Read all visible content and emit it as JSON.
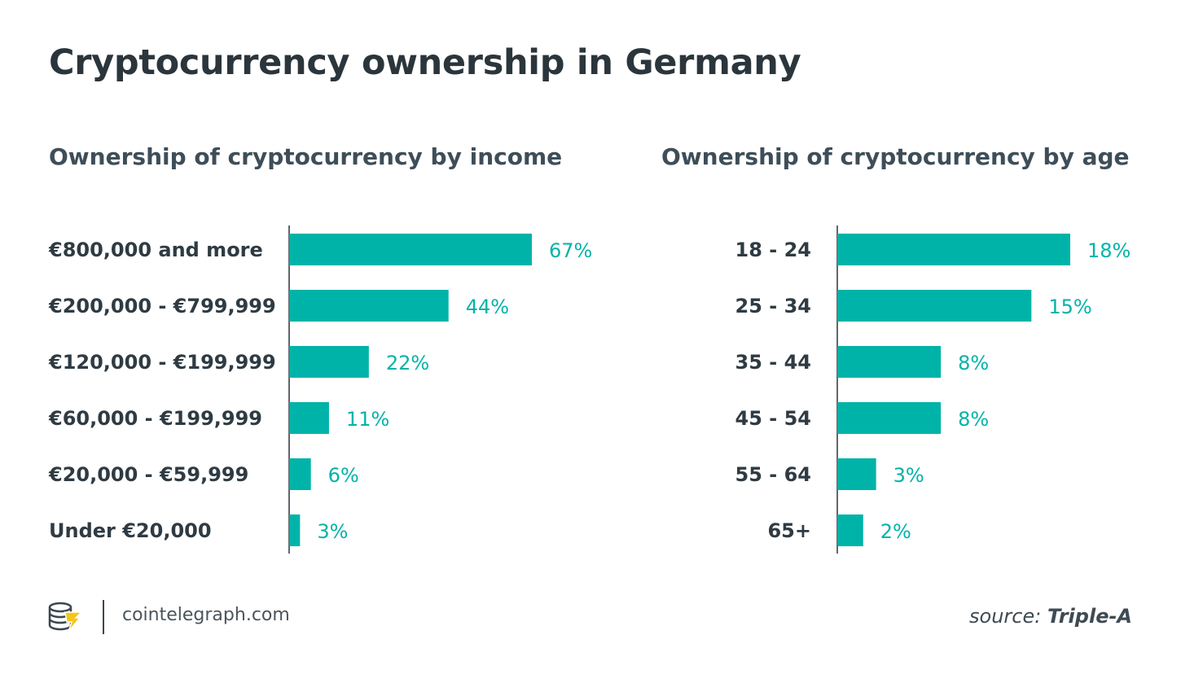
{
  "title": "Cryptocurrency ownership in Germany",
  "chart_data": [
    {
      "type": "bar",
      "orientation": "horizontal",
      "title": "Ownership of cryptocurrency by income",
      "categories": [
        "€800,000 and more",
        "€200,000 - €799,999",
        "€120,000 - €199,999",
        "€60,000 - €199,999",
        "€20,000 - €59,999",
        "Under €20,000"
      ],
      "values": [
        67,
        44,
        22,
        11,
        6,
        3
      ],
      "value_labels": [
        "67%",
        "44%",
        "22%",
        "11%",
        "6%",
        "3%"
      ],
      "unit": "%",
      "xlim": [
        0,
        67
      ],
      "color": "#00b3a8",
      "grid": false
    },
    {
      "type": "bar",
      "orientation": "horizontal",
      "title": "Ownership of cryptocurrency by age",
      "categories": [
        "18 - 24",
        "25 - 34",
        "35 - 44",
        "45 - 54",
        "55 - 64",
        "65+"
      ],
      "values": [
        18,
        15,
        8,
        8,
        3,
        2
      ],
      "value_labels": [
        "18%",
        "15%",
        "8%",
        "8%",
        "3%",
        "2%"
      ],
      "unit": "%",
      "xlim": [
        0,
        18
      ],
      "color": "#00b3a8",
      "grid": false
    }
  ],
  "footer": {
    "site": "cointelegraph.com",
    "logo_icon": "cointelegraph-coin-icon",
    "source_prefix": "source:",
    "source_name": "Triple-A"
  }
}
